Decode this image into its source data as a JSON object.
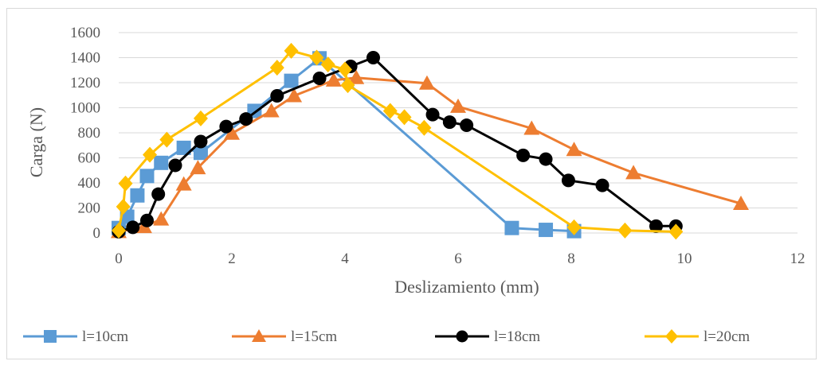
{
  "chart_data": {
    "type": "line",
    "title": "",
    "xlabel": "Deslizamiento (mm)",
    "ylabel": "Carga (N)",
    "xlim": [
      0,
      12
    ],
    "ylim": [
      0,
      1600
    ],
    "x_ticks": [
      "0",
      "2",
      "4",
      "6",
      "8",
      "10",
      "12"
    ],
    "y_ticks": [
      "0",
      "200",
      "400",
      "600",
      "800",
      "1000",
      "1200",
      "1400",
      "1600"
    ],
    "grid": "horizontal",
    "legend_position": "bottom",
    "series": [
      {
        "name": "l=10cm",
        "color": "#5B9BD5",
        "marker": "square",
        "points": [
          [
            0.0,
            40
          ],
          [
            0.15,
            130
          ],
          [
            0.33,
            300
          ],
          [
            0.5,
            455
          ],
          [
            0.75,
            560
          ],
          [
            1.15,
            680
          ],
          [
            1.45,
            640
          ],
          [
            2.4,
            975
          ],
          [
            3.05,
            1215
          ],
          [
            3.55,
            1395
          ],
          [
            6.95,
            40
          ],
          [
            7.55,
            25
          ],
          [
            8.05,
            15
          ]
        ]
      },
      {
        "name": "l=15cm",
        "color": "#ED7D31",
        "marker": "triangle",
        "points": [
          [
            0.0,
            10
          ],
          [
            0.45,
            50
          ],
          [
            0.75,
            110
          ],
          [
            1.15,
            390
          ],
          [
            1.4,
            520
          ],
          [
            2.0,
            795
          ],
          [
            2.7,
            975
          ],
          [
            3.1,
            1095
          ],
          [
            3.8,
            1220
          ],
          [
            4.2,
            1240
          ],
          [
            5.45,
            1195
          ],
          [
            6.0,
            1010
          ],
          [
            7.3,
            835
          ],
          [
            8.05,
            665
          ],
          [
            9.1,
            480
          ],
          [
            11.0,
            235
          ]
        ]
      },
      {
        "name": "l=18cm",
        "color": "#000000",
        "marker": "circle",
        "points": [
          [
            0.0,
            10
          ],
          [
            0.25,
            45
          ],
          [
            0.5,
            100
          ],
          [
            0.7,
            310
          ],
          [
            1.0,
            540
          ],
          [
            1.45,
            730
          ],
          [
            1.9,
            850
          ],
          [
            2.25,
            910
          ],
          [
            2.8,
            1095
          ],
          [
            3.55,
            1235
          ],
          [
            4.1,
            1330
          ],
          [
            4.5,
            1400
          ],
          [
            5.55,
            945
          ],
          [
            5.85,
            885
          ],
          [
            6.15,
            860
          ],
          [
            7.15,
            620
          ],
          [
            7.55,
            590
          ],
          [
            7.95,
            420
          ],
          [
            8.55,
            380
          ],
          [
            9.5,
            55
          ],
          [
            9.85,
            55
          ]
        ]
      },
      {
        "name": "l=20cm",
        "color": "#FFC000",
        "marker": "diamond",
        "points": [
          [
            0.0,
            20
          ],
          [
            0.08,
            210
          ],
          [
            0.12,
            395
          ],
          [
            0.55,
            625
          ],
          [
            0.85,
            745
          ],
          [
            1.45,
            915
          ],
          [
            2.8,
            1320
          ],
          [
            3.05,
            1455
          ],
          [
            3.5,
            1400
          ],
          [
            3.7,
            1345
          ],
          [
            4.0,
            1305
          ],
          [
            4.05,
            1180
          ],
          [
            4.8,
            975
          ],
          [
            5.05,
            925
          ],
          [
            5.4,
            840
          ],
          [
            8.05,
            45
          ],
          [
            8.95,
            20
          ],
          [
            9.85,
            10
          ]
        ]
      }
    ]
  }
}
